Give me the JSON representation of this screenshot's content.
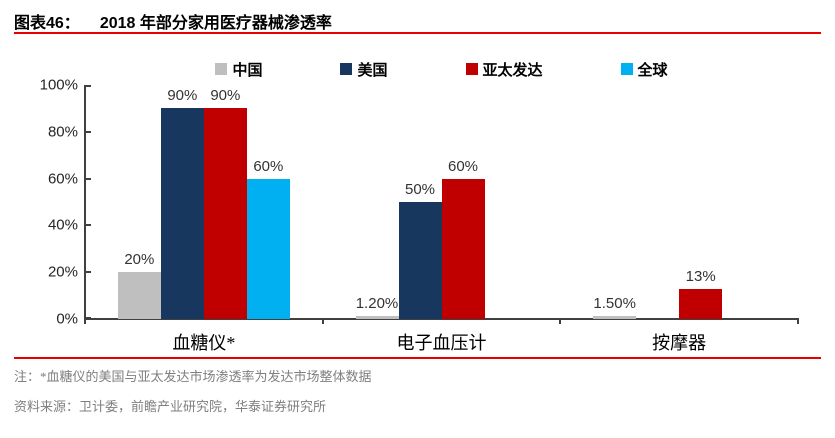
{
  "header": {
    "figure_label": "图表46：",
    "title": "2018 年部分家用医疗器械渗透率"
  },
  "chart_data": {
    "type": "bar",
    "title": "2018 年部分家用医疗器械渗透率",
    "categories": [
      "血糖仪*",
      "电子血压计",
      "按摩器"
    ],
    "series": [
      {
        "name": "中国",
        "color": "#bfbfbf",
        "values": [
          20,
          1.2,
          1.5
        ],
        "labels": [
          "20%",
          "1.20%",
          "1.50%"
        ]
      },
      {
        "name": "美国",
        "color": "#17375e",
        "values": [
          90,
          50,
          null
        ],
        "labels": [
          "90%",
          "50%",
          null
        ]
      },
      {
        "name": "亚太发达",
        "color": "#c00000",
        "values": [
          90,
          60,
          13
        ],
        "labels": [
          "90%",
          "60%",
          "13%"
        ]
      },
      {
        "name": "全球",
        "color": "#00b0f0",
        "values": [
          60,
          null,
          null
        ],
        "labels": [
          "60%",
          null,
          null
        ]
      }
    ],
    "xlabel": "",
    "ylabel": "",
    "ylim": [
      0,
      100
    ],
    "yticks": [
      0,
      20,
      40,
      60,
      80,
      100
    ],
    "ytick_labels": [
      "0%",
      "20%",
      "40%",
      "60%",
      "80%",
      "100%"
    ],
    "grid": false,
    "legend_position": "top"
  },
  "footer": {
    "note": "注：*血糖仪的美国与亚太发达市场渗透率为发达市场整体数据",
    "source": "资料来源：卫计委，前瞻产业研究院，华泰证券研究所"
  },
  "colors": {
    "accent_rule": "#e60000",
    "axis": "#404040",
    "data_label": "#333333",
    "note_text": "#7f7f7f"
  }
}
